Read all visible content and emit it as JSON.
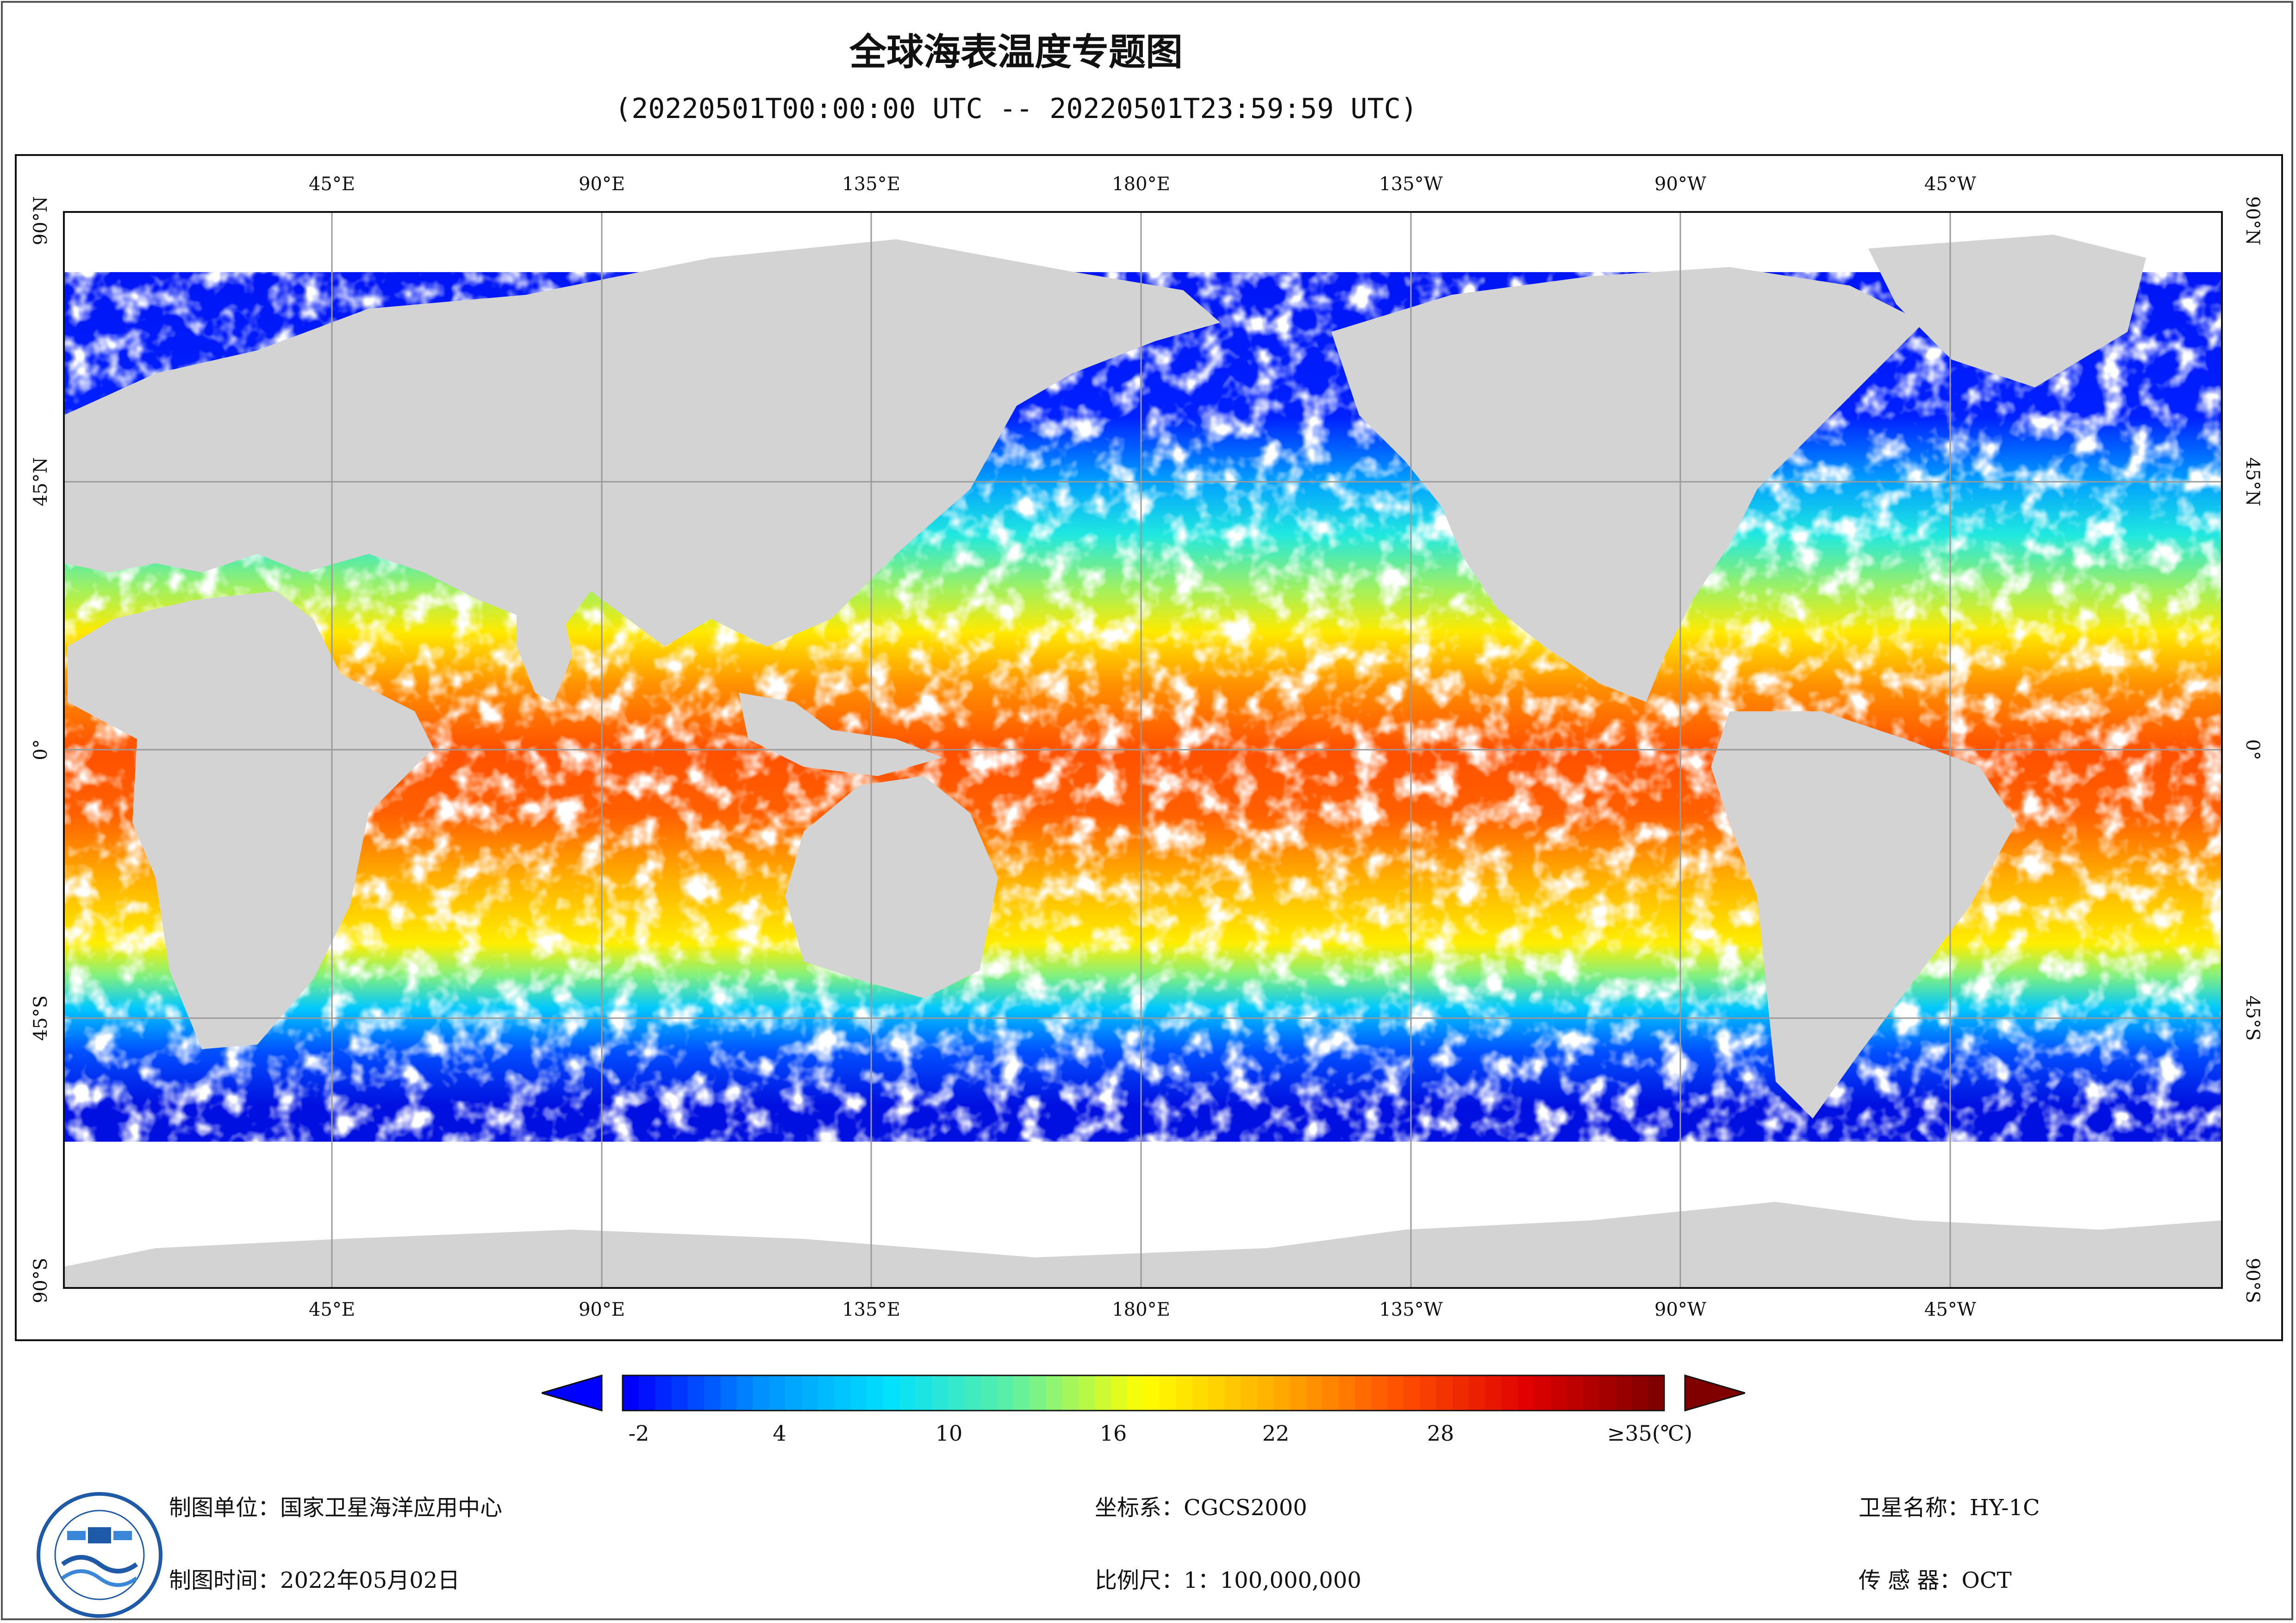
{
  "title": "全球海表温度专题图",
  "subtitle": "(20220501T00:00:00 UTC -- 20220501T23:59:59 UTC)",
  "map": {
    "lon_labels_top": [
      "45°E",
      "90°E",
      "135°E",
      "180°E",
      "135°W",
      "90°W",
      "45°W"
    ],
    "lon_labels_bottom": [
      "45°E",
      "90°E",
      "135°E",
      "180°E",
      "135°W",
      "90°W",
      "45°W"
    ],
    "lat_labels": [
      "90°N",
      "45°N",
      "0°",
      "45°S",
      "90°S"
    ],
    "colors": {
      "land": "#d3d3d3",
      "no_data": "#ffffff",
      "grid": "#9a9a9a"
    }
  },
  "colorbar": {
    "unit": "(℃)",
    "ticks": [
      "-2",
      "4",
      "10",
      "16",
      "22",
      "28",
      "≥35(℃)"
    ],
    "tick_values": [
      -2,
      4,
      10,
      16,
      22,
      28,
      35
    ],
    "min": -2,
    "max": 35,
    "colors": [
      "#0000ff",
      "#0090ff",
      "#00e0ff",
      "#60f0a0",
      "#ffff00",
      "#ffb000",
      "#ff5000",
      "#e00000",
      "#800000"
    ],
    "under_color": "#0000ff",
    "over_color": "#800000"
  },
  "footer": {
    "producer": "制图单位：国家卫星海洋应用中心",
    "date": "制图时间：2022年05月02日",
    "crs": "坐标系：CGCS2000",
    "scale": "比例尺：1：100,000,000",
    "satellite": "卫星名称：HY-1C",
    "sensor": "传  感  器：OCT"
  },
  "logo": {
    "icon": "nsoas-logo-icon"
  }
}
